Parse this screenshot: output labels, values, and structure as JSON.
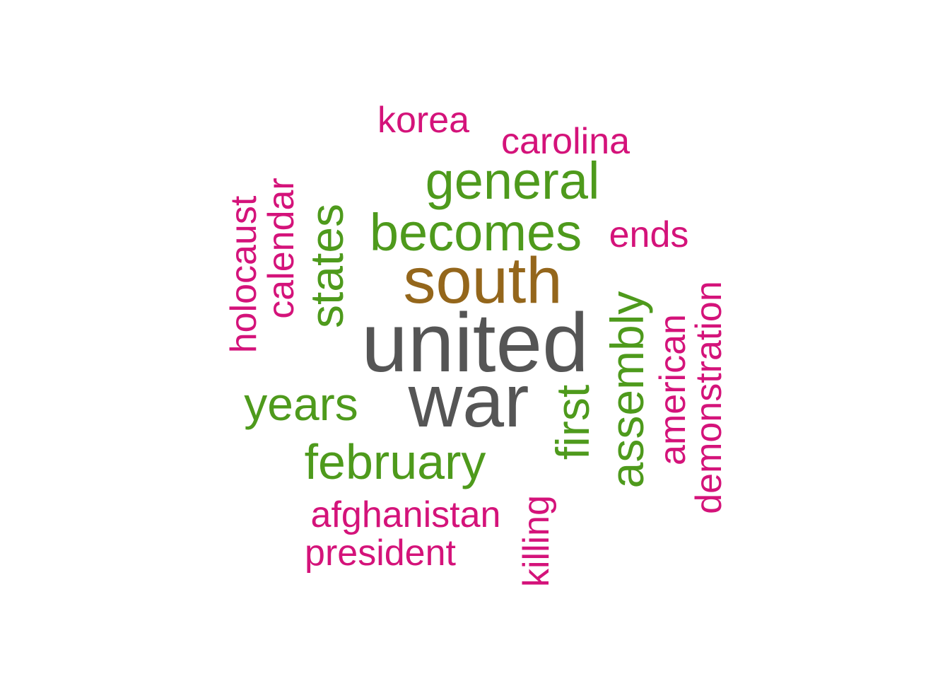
{
  "palette": {
    "magenta": "#D4137A",
    "green": "#4E9A1C",
    "brown": "#94661B",
    "gray": "#555555"
  },
  "words": [
    {
      "text": "united",
      "color": "#555555",
      "rotated": false
    },
    {
      "text": "war",
      "color": "#555555",
      "rotated": false
    },
    {
      "text": "south",
      "color": "#94661B",
      "rotated": false
    },
    {
      "text": "general",
      "color": "#4E9A1C",
      "rotated": false
    },
    {
      "text": "becomes",
      "color": "#4E9A1C",
      "rotated": false
    },
    {
      "text": "years",
      "color": "#4E9A1C",
      "rotated": false
    },
    {
      "text": "february",
      "color": "#4E9A1C",
      "rotated": false
    },
    {
      "text": "states",
      "color": "#4E9A1C",
      "rotated": true
    },
    {
      "text": "first",
      "color": "#4E9A1C",
      "rotated": true
    },
    {
      "text": "assembly",
      "color": "#4E9A1C",
      "rotated": true
    },
    {
      "text": "korea",
      "color": "#D4137A",
      "rotated": false
    },
    {
      "text": "carolina",
      "color": "#D4137A",
      "rotated": false
    },
    {
      "text": "ends",
      "color": "#D4137A",
      "rotated": false
    },
    {
      "text": "afghanistan",
      "color": "#D4137A",
      "rotated": false
    },
    {
      "text": "president",
      "color": "#D4137A",
      "rotated": false
    },
    {
      "text": "holocaust",
      "color": "#D4137A",
      "rotated": true
    },
    {
      "text": "calendar",
      "color": "#D4137A",
      "rotated": true
    },
    {
      "text": "american",
      "color": "#D4137A",
      "rotated": true
    },
    {
      "text": "demonstration",
      "color": "#D4137A",
      "rotated": true
    },
    {
      "text": "killing",
      "color": "#D4137A",
      "rotated": true
    }
  ]
}
